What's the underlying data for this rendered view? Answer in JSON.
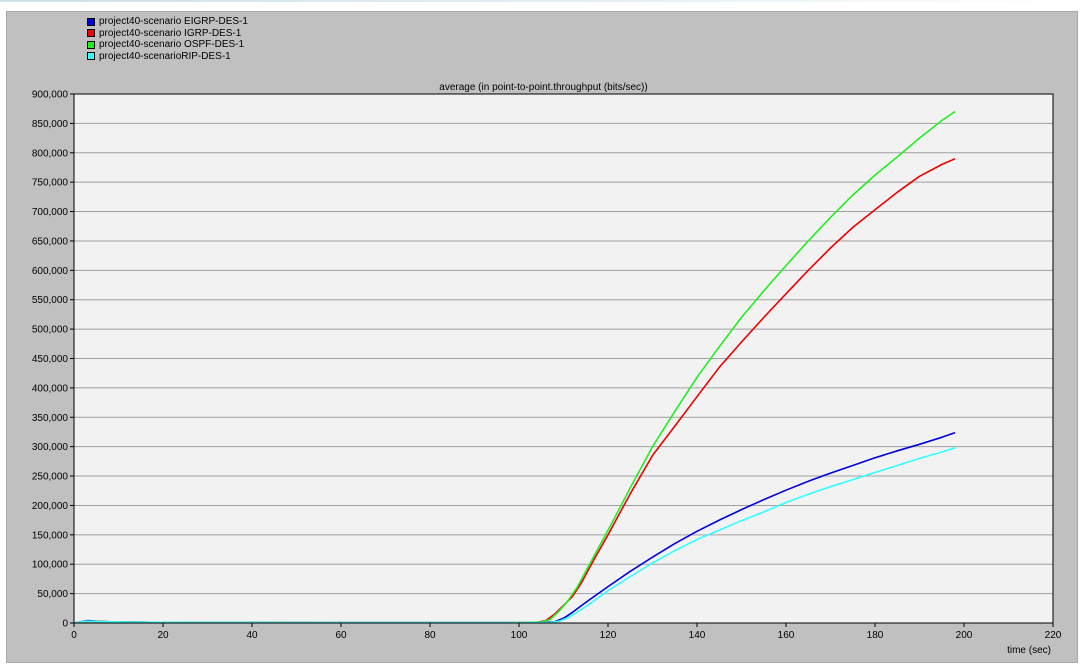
{
  "chart_data": {
    "type": "line",
    "title": "average (in point-to-point.throughput (bits/sec))",
    "xlabel": "time (sec)",
    "ylabel": "",
    "xlim": [
      0,
      220
    ],
    "ylim": [
      0,
      900000
    ],
    "xticks": [
      0,
      20,
      40,
      60,
      80,
      100,
      120,
      140,
      160,
      180,
      200,
      220
    ],
    "yticks": [
      0,
      50000,
      100000,
      150000,
      200000,
      250000,
      300000,
      350000,
      400000,
      450000,
      500000,
      550000,
      600000,
      650000,
      700000,
      750000,
      800000,
      850000,
      900000
    ],
    "grid": true,
    "legend_position": "top-left",
    "series": [
      {
        "name": "project40-scenario EIGRP-DES-1",
        "color": "#0000dd",
        "x": [
          0,
          3,
          5,
          8,
          12,
          20,
          60,
          100,
          106,
          108,
          110,
          112,
          115,
          120,
          125,
          130,
          135,
          140,
          145,
          150,
          155,
          160,
          165,
          170,
          175,
          180,
          185,
          190,
          195,
          198
        ],
        "y": [
          0,
          4000,
          3000,
          2000,
          1500,
          1000,
          500,
          500,
          600,
          2000,
          8000,
          18000,
          35000,
          62000,
          88000,
          112000,
          135000,
          156000,
          175000,
          193000,
          210000,
          226000,
          241000,
          255000,
          268000,
          281000,
          293000,
          304000,
          316000,
          324000
        ]
      },
      {
        "name": "project40-scenario IGRP-DES-1",
        "color": "#ee0000",
        "x": [
          0,
          3,
          5,
          8,
          12,
          20,
          60,
          100,
          104,
          106,
          108,
          110,
          112,
          114,
          117,
          120,
          125,
          130,
          135,
          140,
          145,
          150,
          155,
          160,
          165,
          170,
          175,
          180,
          185,
          190,
          195,
          198
        ],
        "y": [
          0,
          3000,
          2500,
          2000,
          1500,
          1000,
          500,
          500,
          1000,
          4000,
          15000,
          30000,
          45000,
          68000,
          110000,
          150000,
          220000,
          285000,
          335000,
          385000,
          435000,
          478000,
          520000,
          560000,
          600000,
          638000,
          673000,
          703000,
          733000,
          760000,
          780000,
          790000
        ]
      },
      {
        "name": "project40-scenario OSPF-DES-1",
        "color": "#22ee22",
        "x": [
          0,
          3,
          5,
          8,
          12,
          20,
          60,
          100,
          105,
          107,
          109,
          111,
          113,
          115,
          118,
          121,
          125,
          130,
          135,
          140,
          145,
          150,
          155,
          160,
          165,
          170,
          175,
          180,
          185,
          190,
          195,
          198
        ],
        "y": [
          0,
          3000,
          2500,
          2000,
          1500,
          1000,
          500,
          500,
          1500,
          6000,
          20000,
          38000,
          60000,
          88000,
          130000,
          172000,
          230000,
          300000,
          360000,
          418000,
          470000,
          520000,
          565000,
          608000,
          650000,
          690000,
          728000,
          762000,
          793000,
          825000,
          855000,
          870000
        ]
      },
      {
        "name": "project40-scenarioRIP-DES-1",
        "color": "#33ffff",
        "x": [
          0,
          3,
          5,
          8,
          12,
          20,
          60,
          100,
          107,
          109,
          111,
          113,
          116,
          120,
          125,
          130,
          135,
          140,
          145,
          150,
          155,
          160,
          165,
          170,
          175,
          180,
          185,
          190,
          195,
          198
        ],
        "y": [
          0,
          3000,
          2500,
          2000,
          1500,
          1000,
          500,
          500,
          600,
          3000,
          9000,
          18000,
          33000,
          55000,
          79000,
          102000,
          123000,
          142000,
          158000,
          174000,
          189000,
          205000,
          219000,
          232000,
          244000,
          256000,
          268000,
          280000,
          291000,
          298000
        ]
      }
    ]
  }
}
